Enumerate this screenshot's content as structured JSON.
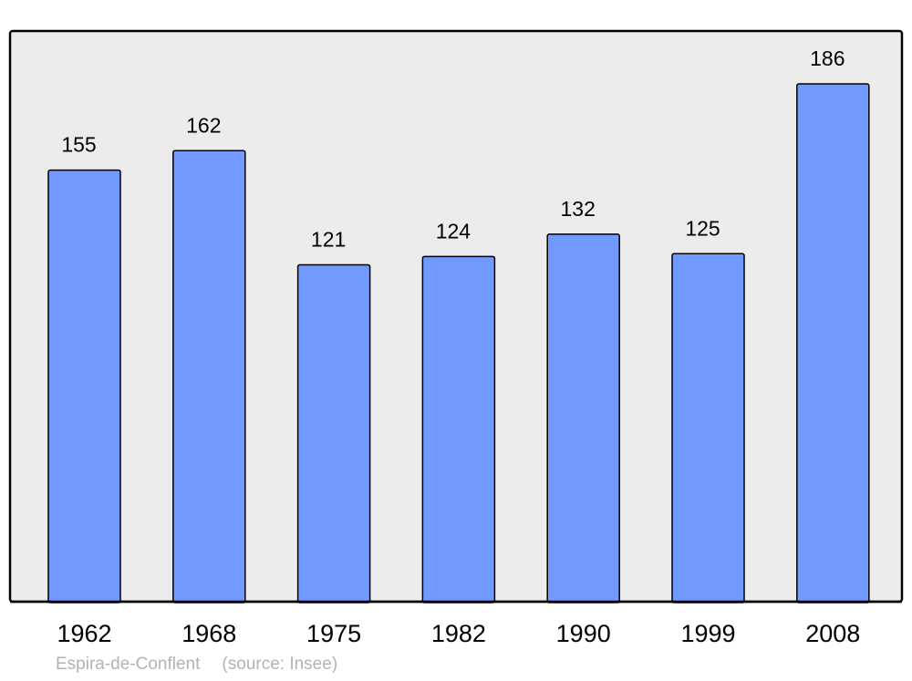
{
  "chart_data": {
    "type": "bar",
    "categories": [
      "1962",
      "1968",
      "1975",
      "1982",
      "1990",
      "1999",
      "2008"
    ],
    "values": [
      155,
      162,
      121,
      124,
      132,
      125,
      186
    ],
    "title": "",
    "xlabel": "",
    "ylabel": "",
    "ylim": [
      0,
      205
    ],
    "grid": false,
    "data_labels": true,
    "colors": {
      "bar": "#7299ff",
      "plot_background": "#ececec",
      "border": "#000000",
      "footer_text": "#b3b3b3"
    }
  },
  "footer": {
    "place": "Espira-de-Conflent",
    "source": "(source: Insee)"
  }
}
